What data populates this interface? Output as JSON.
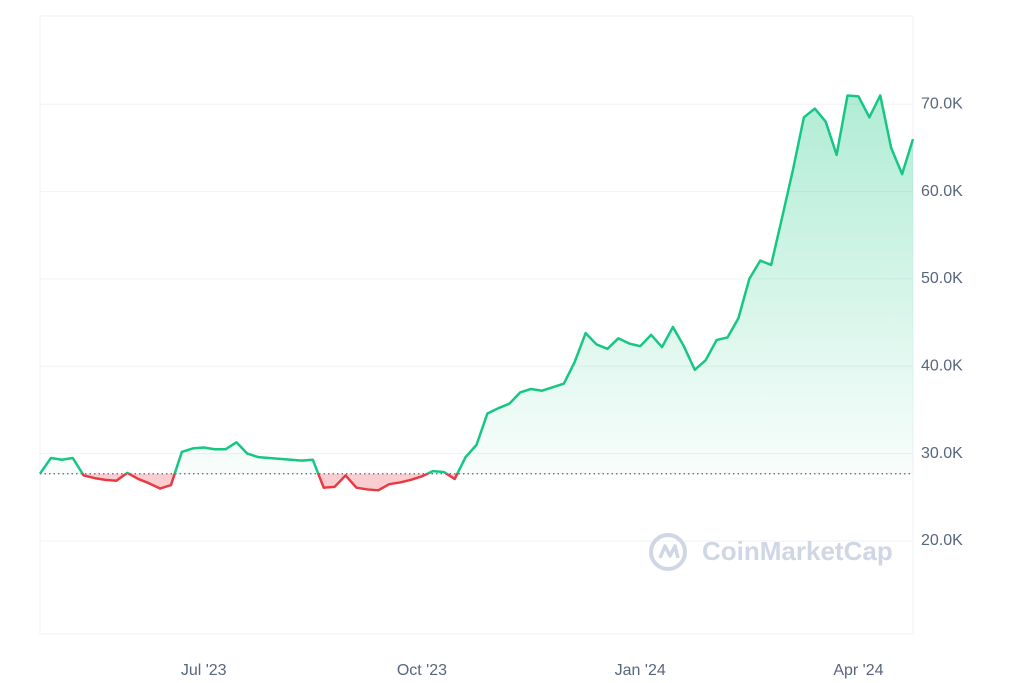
{
  "chart_data": {
    "type": "line",
    "categories": [
      null,
      null,
      null,
      null,
      null,
      null,
      null,
      null,
      null,
      null,
      null,
      null,
      null,
      null,
      null,
      "Jul '23",
      null,
      null,
      null,
      null,
      null,
      null,
      null,
      null,
      null,
      null,
      null,
      null,
      null,
      null,
      null,
      null,
      null,
      null,
      null,
      "Oct '23",
      null,
      null,
      null,
      null,
      null,
      null,
      null,
      null,
      null,
      null,
      null,
      null,
      null,
      null,
      null,
      null,
      null,
      null,
      null,
      "Jan '24",
      null,
      null,
      null,
      null,
      null,
      null,
      null,
      null,
      null,
      null,
      null,
      null,
      null,
      null,
      null,
      null,
      null,
      null,
      null,
      "Apr '24",
      null,
      null,
      null,
      null,
      null
    ],
    "values": [
      27700,
      29500,
      29300,
      29500,
      27500,
      27200,
      27000,
      26900,
      27800,
      27100,
      26600,
      26000,
      26400,
      30200,
      30600,
      30700,
      30500,
      30500,
      31300,
      30000,
      29600,
      29500,
      29400,
      29300,
      29200,
      29300,
      26100,
      26200,
      27500,
      26100,
      25900,
      25800,
      26500,
      26700,
      27000,
      27400,
      28000,
      27900,
      27100,
      29600,
      31000,
      34600,
      35200,
      35700,
      37000,
      37400,
      37200,
      37600,
      38000,
      40500,
      43800,
      42500,
      42000,
      43200,
      42600,
      42300,
      43600,
      42200,
      44500,
      42300,
      39600,
      40700,
      43000,
      43300,
      45500,
      50000,
      52100,
      51600,
      57000,
      62500,
      68500,
      69500,
      68000,
      64200,
      71000,
      70900,
      68500,
      71000,
      65000,
      62000,
      66000
    ],
    "baseline": 27700,
    "up_color": "#16c784",
    "down_color": "#ea3943",
    "ylim": [
      9350,
      80100
    ],
    "yticks": [
      {
        "value": 20000,
        "label": "20.0K"
      },
      {
        "value": 30000,
        "label": "30.0K"
      },
      {
        "value": 40000,
        "label": "40.0K"
      },
      {
        "value": 50000,
        "label": "50.0K"
      },
      {
        "value": 60000,
        "label": "60.0K"
      },
      {
        "value": 70000,
        "label": "70.0K"
      }
    ],
    "grid": true,
    "watermark": "CoinMarketCap"
  }
}
